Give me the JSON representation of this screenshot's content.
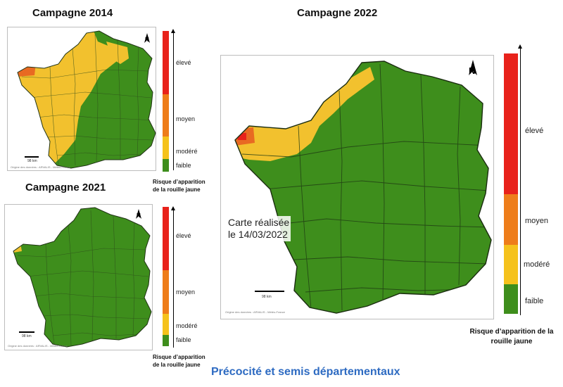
{
  "maps": [
    {
      "id": "2014",
      "title": "Campagne 2014",
      "stamp": "",
      "scale_label": "98 km",
      "credit": "Origine des données : ARVALIS - Météo-France",
      "legend_caption": [
        "Risque d’apparition",
        "de la rouille jaune"
      ]
    },
    {
      "id": "2021",
      "title": "Campagne 2021",
      "stamp": "",
      "scale_label": "98 km",
      "credit": "Origine des données : ARVALIS - Météo-France",
      "legend_caption": [
        "Risque d’apparition",
        "de la rouille jaune"
      ]
    },
    {
      "id": "2022",
      "title": "Campagne 2022",
      "stamp": [
        "Carte réalisée",
        "le 14/03/2022"
      ],
      "scale_label": "98 km",
      "credit": "Origine des données : ARVALIS - Météo-France",
      "legend_caption": [
        "Risque d’apparition de la",
        "rouille jaune"
      ]
    }
  ],
  "legend_levels": [
    "élevé",
    "moyen",
    "modéré",
    "faible"
  ],
  "colors": {
    "eleve": "#e8221b",
    "moyen": "#ee7d1a",
    "modere": "#f5c21c",
    "faible": "#3e8e1c",
    "yellow_map": "#f2c12e",
    "orange_map": "#e86a22"
  },
  "footer": "Précocité et semis départementaux"
}
